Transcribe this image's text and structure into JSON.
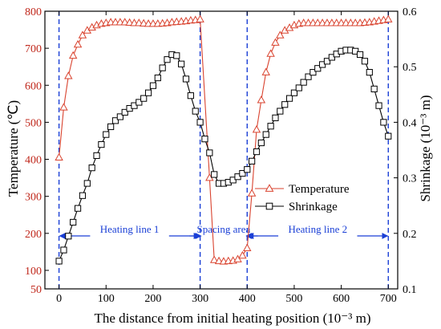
{
  "chart_data": {
    "type": "line",
    "xlabel": "The distance from initial heating position (10⁻³ m)",
    "ylabel_left": "Temperature (℃)",
    "ylabel_right": "Shrinkage (10⁻³ m)",
    "xlim": [
      -30,
      720
    ],
    "ylim_left": [
      50,
      800
    ],
    "ylim_right": [
      0.1,
      0.6
    ],
    "x_ticks": [
      "0",
      "100",
      "200",
      "300",
      "400",
      "500",
      "600",
      "700"
    ],
    "left_ticks": [
      "50",
      "100",
      "200",
      "300",
      "400",
      "500",
      "600",
      "700",
      "800"
    ],
    "right_ticks": [
      "0.1",
      "0.2",
      "0.3",
      "0.4",
      "0.5",
      "0.6"
    ],
    "legend": {
      "position": "center-right",
      "entries": [
        "Temperature",
        "Shrinkage"
      ]
    },
    "colors": {
      "temperature": "#d9432f",
      "shrinkage": "#000000",
      "guide": "#1a3fd6",
      "left_ticks": "#c0281c"
    },
    "vlines": [
      0,
      300,
      400,
      700
    ],
    "annotations": [
      {
        "text": "Heating line 1",
        "x_from": 0,
        "x_to": 300,
        "y_left": 193
      },
      {
        "text": "Spacing area",
        "x_from": 300,
        "x_to": 400,
        "y_left": 193
      },
      {
        "text": "Heating line 2",
        "x_from": 400,
        "x_to": 700,
        "y_left": 193
      }
    ],
    "series": [
      {
        "name": "Temperature",
        "axis": "left",
        "marker": "triangle",
        "x": [
          0,
          10,
          20,
          30,
          40,
          50,
          60,
          70,
          80,
          90,
          100,
          110,
          120,
          130,
          140,
          150,
          160,
          170,
          180,
          190,
          200,
          210,
          220,
          230,
          240,
          250,
          260,
          270,
          280,
          290,
          300,
          320,
          330,
          340,
          350,
          360,
          370,
          380,
          390,
          400,
          410,
          420,
          430,
          440,
          450,
          460,
          470,
          480,
          490,
          500,
          510,
          520,
          530,
          540,
          550,
          560,
          570,
          580,
          590,
          600,
          610,
          620,
          630,
          640,
          650,
          660,
          670,
          680,
          690,
          700
        ],
        "y": [
          405,
          540,
          625,
          680,
          710,
          735,
          748,
          756,
          762,
          766,
          768,
          770,
          770,
          770,
          770,
          769,
          768,
          768,
          767,
          766,
          766,
          766,
          767,
          768,
          770,
          771,
          772,
          773,
          775,
          776,
          778,
          350,
          128,
          125,
          124,
          125,
          126,
          130,
          140,
          160,
          308,
          480,
          560,
          635,
          685,
          715,
          735,
          748,
          755,
          762,
          766,
          768,
          768,
          768,
          768,
          768,
          768,
          768,
          768,
          768,
          768,
          768,
          768,
          768,
          769,
          770,
          772,
          774,
          776,
          778
        ]
      },
      {
        "name": "Shrinkage",
        "axis": "right",
        "marker": "square",
        "x": [
          0,
          10,
          20,
          30,
          40,
          50,
          60,
          70,
          80,
          90,
          100,
          110,
          120,
          130,
          140,
          150,
          160,
          170,
          180,
          190,
          200,
          210,
          220,
          230,
          240,
          250,
          260,
          270,
          280,
          290,
          300,
          310,
          320,
          330,
          340,
          350,
          360,
          370,
          380,
          390,
          400,
          410,
          420,
          430,
          440,
          450,
          460,
          470,
          480,
          490,
          500,
          510,
          520,
          530,
          540,
          550,
          560,
          570,
          580,
          590,
          600,
          610,
          620,
          630,
          640,
          650,
          660,
          670,
          680,
          690,
          700
        ],
        "y": [
          0.15,
          0.17,
          0.195,
          0.22,
          0.245,
          0.268,
          0.29,
          0.318,
          0.34,
          0.36,
          0.378,
          0.392,
          0.403,
          0.41,
          0.418,
          0.425,
          0.43,
          0.436,
          0.443,
          0.453,
          0.466,
          0.48,
          0.498,
          0.513,
          0.522,
          0.52,
          0.505,
          0.478,
          0.448,
          0.42,
          0.4,
          0.37,
          0.345,
          0.306,
          0.29,
          0.29,
          0.292,
          0.296,
          0.302,
          0.308,
          0.315,
          0.33,
          0.347,
          0.363,
          0.378,
          0.393,
          0.408,
          0.42,
          0.432,
          0.443,
          0.453,
          0.462,
          0.472,
          0.482,
          0.49,
          0.497,
          0.504,
          0.51,
          0.517,
          0.523,
          0.528,
          0.53,
          0.53,
          0.528,
          0.522,
          0.51,
          0.49,
          0.46,
          0.43,
          0.4,
          0.375
        ]
      }
    ]
  }
}
